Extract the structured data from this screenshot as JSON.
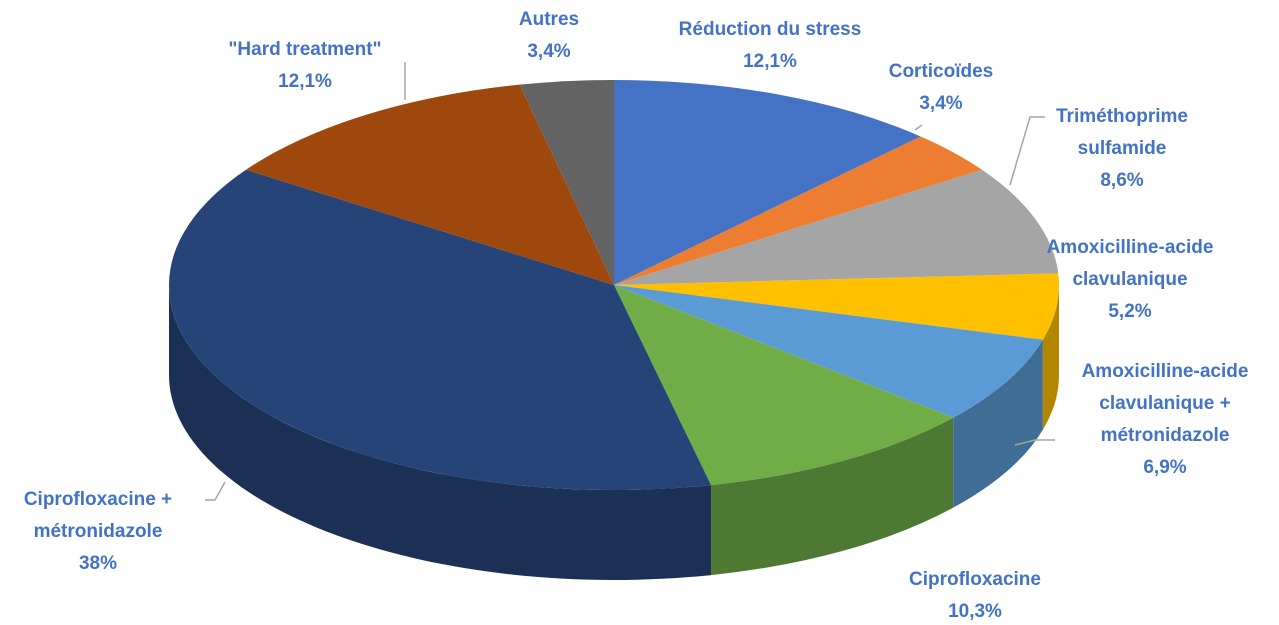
{
  "chart_data": {
    "type": "pie3d",
    "categories": [
      "Réduction du stress",
      "Corticoïdes",
      "Triméthoprime\nsulfamide",
      "Amoxicilline-acide\nclavulanique",
      "Amoxicilline-acide\nclavulanique +\nmétronidazole",
      "Ciprofloxacine",
      "Ciprofloxacine +\nmétronidazole",
      "\"Hard treatment\"",
      "Autres"
    ],
    "values": [
      12.1,
      3.4,
      8.6,
      5.2,
      6.9,
      10.3,
      38,
      12.1,
      3.4
    ],
    "value_labels": [
      "12,1%",
      "3,4%",
      "8,6%",
      "5,2%",
      "6,9%",
      "10,3%",
      "38%",
      "12,1%",
      "3,4%"
    ],
    "colors": [
      "#4472c4",
      "#ed7d31",
      "#a5a5a5",
      "#ffc000",
      "#5b9bd5",
      "#70ad47",
      "#264478",
      "#9e480e",
      "#636363"
    ]
  }
}
